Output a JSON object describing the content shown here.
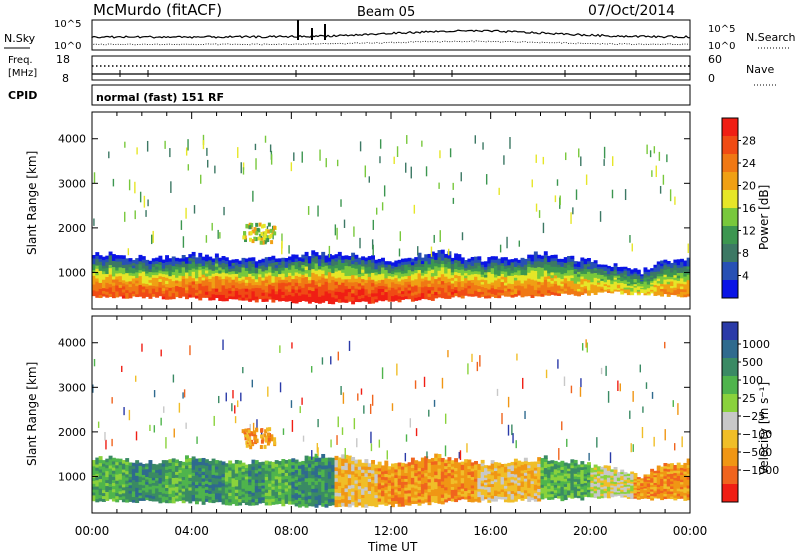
{
  "header": {
    "station": "McMurdo (fitACF)",
    "beam": "Beam 05",
    "date": "07/Oct/2014"
  },
  "noise_panel": {
    "left_label": "N.Sky",
    "right_label": "N.Search",
    "left_ticks": [
      "10^5",
      "10^0"
    ],
    "right_ticks": [
      "10^5",
      "10^0"
    ]
  },
  "freq_panel": {
    "left_label_1": "Freq.",
    "left_label_2": "[MHz]",
    "right_label": "Nave",
    "left_ticks": [
      "18",
      "8"
    ],
    "right_ticks": [
      "60",
      "0"
    ]
  },
  "cpid_panel": {
    "label": "CPID",
    "text": "normal (fast) 151 RF"
  },
  "time_axis": {
    "label": "Time UT",
    "ticks": [
      "00:00",
      "04:00",
      "08:00",
      "12:00",
      "16:00",
      "20:00",
      "00:00"
    ]
  },
  "colors": {
    "power": [
      "#0a14e6",
      "#2850b4",
      "#3c7864",
      "#3c9650",
      "#78c83c",
      "#e6e628",
      "#f0a014",
      "#f07814",
      "#f04b14",
      "#f01e14"
    ],
    "velocity": [
      "#2a3aa8",
      "#2f6a8e",
      "#3a8a64",
      "#4fb44c",
      "#8ad23c",
      "#c8c8c8",
      "#f0be28",
      "#f09614",
      "#f0641e",
      "#f01e14"
    ]
  },
  "chart_data": [
    {
      "type": "heatmap",
      "title": "Power",
      "xlabel": "Time UT",
      "ylabel": "Slant Range [km]",
      "xlim_hours": [
        0,
        24
      ],
      "ylim_km": [
        180,
        4600
      ],
      "y_ticks": [
        1000,
        2000,
        3000,
        4000
      ],
      "colorbar": {
        "label": "Power [dB]",
        "range": [
          0,
          32
        ],
        "tick_labels": [
          "4",
          "8",
          "12",
          "16",
          "20",
          "24",
          "28"
        ]
      },
      "segments": [
        {
          "t": 0.0,
          "lower": 470,
          "upper": 1420,
          "peak": 26,
          "shift": 0
        },
        {
          "t": 1.0,
          "lower": 460,
          "upper": 1400,
          "peak": 27,
          "shift": 0
        },
        {
          "t": 2.0,
          "lower": 450,
          "upper": 1320,
          "peak": 27,
          "shift": 0
        },
        {
          "t": 3.0,
          "lower": 440,
          "upper": 1340,
          "peak": 27,
          "shift": 0
        },
        {
          "t": 4.0,
          "lower": 430,
          "upper": 1420,
          "peak": 28,
          "shift": 0
        },
        {
          "t": 5.0,
          "lower": 400,
          "upper": 1360,
          "peak": 29,
          "shift": 0
        },
        {
          "t": 6.0,
          "lower": 380,
          "upper": 1300,
          "peak": 30,
          "shift": 0
        },
        {
          "t": 7.0,
          "lower": 380,
          "upper": 1320,
          "peak": 30,
          "shift": 0
        },
        {
          "t": 8.0,
          "lower": 360,
          "upper": 1380,
          "peak": 31,
          "shift": 0
        },
        {
          "t": 9.0,
          "lower": 340,
          "upper": 1440,
          "peak": 31,
          "shift": 0
        },
        {
          "t": 10.0,
          "lower": 330,
          "upper": 1440,
          "peak": 31,
          "shift": 0
        },
        {
          "t": 11.0,
          "lower": 340,
          "upper": 1360,
          "peak": 31,
          "shift": 0
        },
        {
          "t": 12.0,
          "lower": 360,
          "upper": 1280,
          "peak": 30,
          "shift": 0
        },
        {
          "t": 13.0,
          "lower": 390,
          "upper": 1380,
          "peak": 29,
          "shift": 0
        },
        {
          "t": 14.0,
          "lower": 420,
          "upper": 1460,
          "peak": 28,
          "shift": 0
        },
        {
          "t": 15.0,
          "lower": 470,
          "upper": 1320,
          "peak": 27,
          "shift": 0
        },
        {
          "t": 16.0,
          "lower": 460,
          "upper": 1300,
          "peak": 26,
          "shift": 0
        },
        {
          "t": 17.0,
          "lower": 470,
          "upper": 1340,
          "peak": 25,
          "shift": 0
        },
        {
          "t": 18.0,
          "lower": 480,
          "upper": 1420,
          "peak": 25,
          "shift": 0
        },
        {
          "t": 19.0,
          "lower": 500,
          "upper": 1350,
          "peak": 24,
          "shift": 0
        },
        {
          "t": 20.0,
          "lower": 520,
          "upper": 1250,
          "peak": 22,
          "shift": 0
        },
        {
          "t": 21.0,
          "lower": 560,
          "upper": 1150,
          "peak": 20,
          "shift": 0
        },
        {
          "t": 22.0,
          "lower": 520,
          "upper": 1000,
          "peak": 18,
          "shift": 0
        },
        {
          "t": 23.0,
          "lower": 500,
          "upper": 1250,
          "peak": 22,
          "shift": 0
        },
        {
          "t": 24.0,
          "lower": 490,
          "upper": 1350,
          "peak": 24,
          "shift": 0
        }
      ]
    },
    {
      "type": "heatmap",
      "title": "Velocity",
      "xlabel": "Time UT",
      "ylabel": "Slant Range [km]",
      "xlim_hours": [
        0,
        24
      ],
      "ylim_km": [
        180,
        4600
      ],
      "y_ticks": [
        1000,
        2000,
        3000,
        4000
      ],
      "colorbar": {
        "label": "Velocity [m s⁻¹]",
        "range": [
          -1200,
          1200
        ],
        "tick_labels": [
          "1000",
          "500",
          "100",
          "25",
          "−25",
          "−100",
          "−500",
          "−1000"
        ]
      },
      "segments": [
        {
          "t": 0.0,
          "lower": 470,
          "upper": 1420,
          "peak": 26,
          "shift": 0
        },
        {
          "t": 1.0,
          "lower": 460,
          "upper": 1400,
          "peak": 27,
          "shift": 0
        },
        {
          "t": 2.0,
          "lower": 450,
          "upper": 1320,
          "peak": 27,
          "shift": 0
        },
        {
          "t": 3.0,
          "lower": 440,
          "upper": 1340,
          "peak": 27,
          "shift": 0
        },
        {
          "t": 4.0,
          "lower": 430,
          "upper": 1420,
          "peak": 28,
          "shift": 0
        },
        {
          "t": 5.0,
          "lower": 400,
          "upper": 1360,
          "peak": 29,
          "shift": 0
        },
        {
          "t": 6.0,
          "lower": 380,
          "upper": 1300,
          "peak": 30,
          "shift": 0
        },
        {
          "t": 7.0,
          "lower": 380,
          "upper": 1320,
          "peak": 30,
          "shift": 0
        },
        {
          "t": 8.0,
          "lower": 360,
          "upper": 1380,
          "peak": 31,
          "shift": 0
        },
        {
          "t": 9.0,
          "lower": 340,
          "upper": 1440,
          "peak": 31,
          "shift": 0
        },
        {
          "t": 10.0,
          "lower": 330,
          "upper": 1440,
          "peak": 31,
          "shift": 0
        },
        {
          "t": 11.0,
          "lower": 340,
          "upper": 1360,
          "peak": 31,
          "shift": 0
        },
        {
          "t": 12.0,
          "lower": 360,
          "upper": 1280,
          "peak": 30,
          "shift": 0
        },
        {
          "t": 13.0,
          "lower": 390,
          "upper": 1380,
          "peak": 29,
          "shift": 0
        },
        {
          "t": 14.0,
          "lower": 420,
          "upper": 1460,
          "peak": 28,
          "shift": 0
        },
        {
          "t": 15.0,
          "lower": 470,
          "upper": 1320,
          "peak": 27,
          "shift": 0
        },
        {
          "t": 16.0,
          "lower": 460,
          "upper": 1300,
          "peak": 26,
          "shift": 0
        },
        {
          "t": 17.0,
          "lower": 470,
          "upper": 1340,
          "peak": 25,
          "shift": 0
        },
        {
          "t": 18.0,
          "lower": 480,
          "upper": 1420,
          "peak": 25,
          "shift": 0
        },
        {
          "t": 19.0,
          "lower": 500,
          "upper": 1350,
          "peak": 24,
          "shift": 0
        },
        {
          "t": 20.0,
          "lower": 520,
          "upper": 1250,
          "peak": 22,
          "shift": 0
        },
        {
          "t": 21.0,
          "lower": 560,
          "upper": 1150,
          "peak": 20,
          "shift": 0
        },
        {
          "t": 22.0,
          "lower": 520,
          "upper": 1000,
          "peak": 18,
          "shift": 0
        },
        {
          "t": 23.0,
          "lower": 500,
          "upper": 1250,
          "peak": 22,
          "shift": 0
        },
        {
          "t": 24.0,
          "lower": 490,
          "upper": 1350,
          "peak": 24,
          "shift": 0
        }
      ],
      "velocity_regimes": [
        {
          "from": 0.0,
          "to": 1.5,
          "level": 3
        },
        {
          "from": 1.5,
          "to": 3.0,
          "level": 2
        },
        {
          "from": 3.0,
          "to": 4.0,
          "level": 3
        },
        {
          "from": 4.0,
          "to": 5.3,
          "level": 2
        },
        {
          "from": 5.3,
          "to": 6.3,
          "level": 3
        },
        {
          "from": 6.3,
          "to": 7.0,
          "level": 2
        },
        {
          "from": 7.0,
          "to": 8.0,
          "level": 3
        },
        {
          "from": 8.0,
          "to": 9.8,
          "level": 2
        },
        {
          "from": 9.8,
          "to": 11.5,
          "level": 6
        },
        {
          "from": 11.5,
          "to": 13.0,
          "level": 7
        },
        {
          "from": 13.0,
          "to": 15.5,
          "level": 7
        },
        {
          "from": 15.5,
          "to": 18.0,
          "level": 6
        },
        {
          "from": 18.0,
          "to": 20.0,
          "level": 3
        },
        {
          "from": 20.0,
          "to": 21.8,
          "level": 5
        },
        {
          "from": 21.8,
          "to": 24.0,
          "level": 7
        }
      ]
    }
  ]
}
